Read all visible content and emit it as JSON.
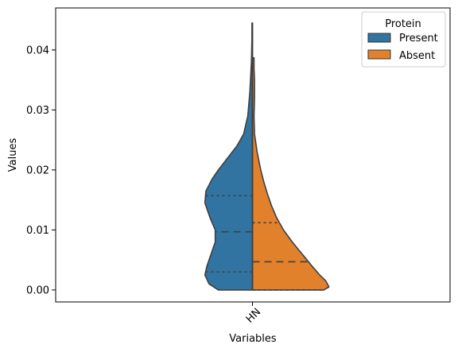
{
  "chart_data": {
    "type": "violin",
    "split": true,
    "categories": [
      "HN"
    ],
    "xlabel": "Variables",
    "ylabel": "Values",
    "yticks": [
      0.0,
      0.01,
      0.02,
      0.03,
      0.04
    ],
    "ytick_labels": [
      "0.00",
      "0.01",
      "0.02",
      "0.03",
      "0.04"
    ],
    "ylim": [
      -0.002,
      0.047
    ],
    "xtick_rotation": -45,
    "legend": {
      "title": "Protein",
      "placement": "top-right",
      "entries": [
        "Present",
        "Absent"
      ]
    },
    "series": [
      {
        "name": "Present",
        "color": "#3274a1",
        "side": "left",
        "quartiles": [
          0.003,
          0.0097,
          0.0157
        ],
        "range": [
          0.0,
          0.0445
        ],
        "density_profile": [
          [
            0.0,
            0.66
          ],
          [
            0.001,
            0.84
          ],
          [
            0.0025,
            0.92
          ],
          [
            0.004,
            0.88
          ],
          [
            0.006,
            0.8
          ],
          [
            0.008,
            0.72
          ],
          [
            0.01,
            0.72
          ],
          [
            0.012,
            0.82
          ],
          [
            0.0145,
            0.92
          ],
          [
            0.0165,
            0.9
          ],
          [
            0.0185,
            0.78
          ],
          [
            0.02,
            0.66
          ],
          [
            0.022,
            0.48
          ],
          [
            0.024,
            0.3
          ],
          [
            0.026,
            0.17
          ],
          [
            0.029,
            0.09
          ],
          [
            0.033,
            0.05
          ],
          [
            0.038,
            0.02
          ],
          [
            0.042,
            0.01
          ],
          [
            0.0445,
            0.01
          ]
        ]
      },
      {
        "name": "Absent",
        "color": "#e1812c",
        "side": "right",
        "quartiles": [
          0.0,
          0.0047,
          0.0112
        ],
        "range": [
          0.0,
          0.0387
        ],
        "density_profile": [
          [
            0.0,
            1.38
          ],
          [
            0.0005,
            1.48
          ],
          [
            0.0015,
            1.42
          ],
          [
            0.0025,
            1.3
          ],
          [
            0.004,
            1.15
          ],
          [
            0.006,
            0.96
          ],
          [
            0.008,
            0.77
          ],
          [
            0.01,
            0.6
          ],
          [
            0.012,
            0.47
          ],
          [
            0.014,
            0.37
          ],
          [
            0.016,
            0.29
          ],
          [
            0.018,
            0.22
          ],
          [
            0.02,
            0.16
          ],
          [
            0.023,
            0.09
          ],
          [
            0.026,
            0.04
          ],
          [
            0.029,
            0.03
          ],
          [
            0.032,
            0.04
          ],
          [
            0.035,
            0.04
          ],
          [
            0.037,
            0.03
          ],
          [
            0.0387,
            0.03
          ]
        ]
      }
    ]
  }
}
